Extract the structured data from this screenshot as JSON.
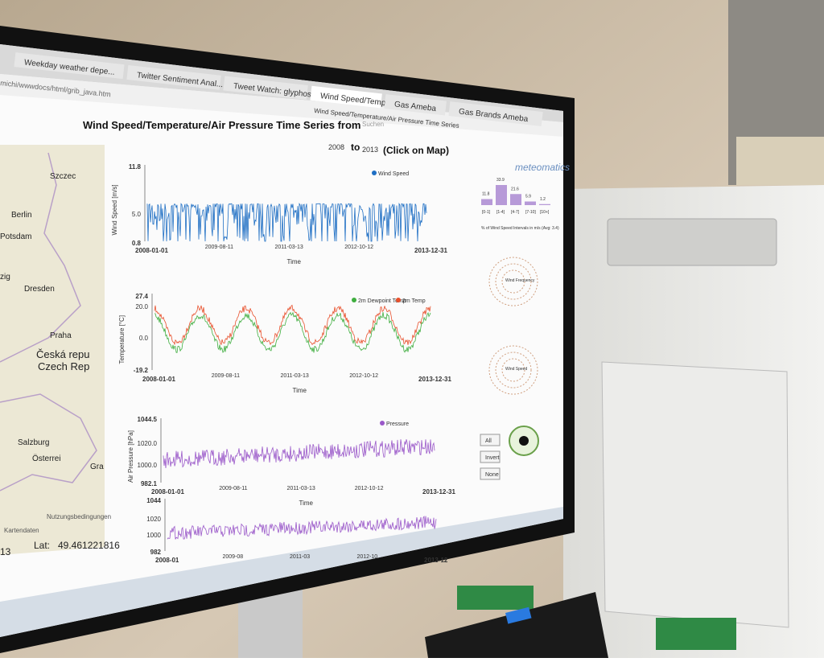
{
  "browser": {
    "tabs": [
      "Weekday weather depe...",
      "Twitter Sentiment Anal...",
      "Tweet Watch: glyphosat",
      "Wind Speed/Temperat...",
      "Gas Ameba",
      "Gas Brands Ameba"
    ],
    "tooltip": "Wind Speed/Temperature/Air Pressure Time Series",
    "url": "michi/wwwdocs/html/grib_java.htm",
    "search": "Suchen"
  },
  "page": {
    "title": "Wind Speed/Temperature/Air Pressure Time Series from",
    "from": "2008",
    "to_word": "to",
    "to": "2013",
    "hint": "(Click on Map)",
    "logo": "meteomatics"
  },
  "map": {
    "labels": [
      "Szczec",
      "Berlin",
      "Potsdam",
      "zig",
      "Dresden",
      "Praha",
      "Česká repu",
      "Czech Rep",
      "Salzburg",
      "Österrei",
      "Gra"
    ],
    "attribution": "Kartendaten",
    "terms": "Nutzungsbedingungen",
    "lat_label": "Lat:",
    "lat": "49.461221816",
    "lon": "13"
  },
  "charts": [
    {
      "ylabel": "Wind Speed [m/s]",
      "yticks": [
        "11.8",
        "5.0",
        "0.8"
      ],
      "xticks": [
        "2008-01-01",
        "2009-08-11",
        "2011-03-13",
        "2012-10-12",
        "2013-12-31"
      ],
      "xlabel": "Time",
      "legend": [
        "Wind Speed"
      ]
    },
    {
      "ylabel": "Temperature [°C]",
      "yticks": [
        "27.4",
        "20.0",
        "0.0",
        "-19.2"
      ],
      "xticks": [
        "2008-01-01",
        "2009-08-11",
        "2011-03-13",
        "2012-10-12",
        "2013-12-31"
      ],
      "xlabel": "Time",
      "legend": [
        "2m Dewpoint Temp",
        "2m Temp"
      ]
    },
    {
      "ylabel": "Air Pressure [hPa]",
      "yticks": [
        "1044.5",
        "1020.0",
        "1000.0",
        "982.1"
      ],
      "xticks": [
        "2008-01-01",
        "2009-08-11",
        "2011-03-13",
        "2012-10-12",
        "2013-12-31"
      ],
      "xlabel": "Time",
      "legend": [
        "Pressure"
      ]
    },
    {
      "ylabel": "",
      "yticks": [
        "1044",
        "1020",
        "1000",
        "982"
      ],
      "xticks": [
        "2008-01",
        "2009-08",
        "2011-03",
        "2012-10",
        "2013-12"
      ]
    }
  ],
  "widgets": {
    "hist_values": [
      "11.8",
      "33.9",
      "21.6",
      "5.9",
      "1.2"
    ],
    "hist_bins": [
      "[0-1]",
      "[1-4]",
      "[4-7]",
      "[7-10]",
      "[10+]"
    ],
    "hist_caption": "% of Wind Speed Intervals in m/s (Avg: 3.4)",
    "rose1": "Wind Frequency",
    "rose2": "Wind Speed",
    "buttons": [
      "All",
      "Invert",
      "None"
    ]
  }
}
